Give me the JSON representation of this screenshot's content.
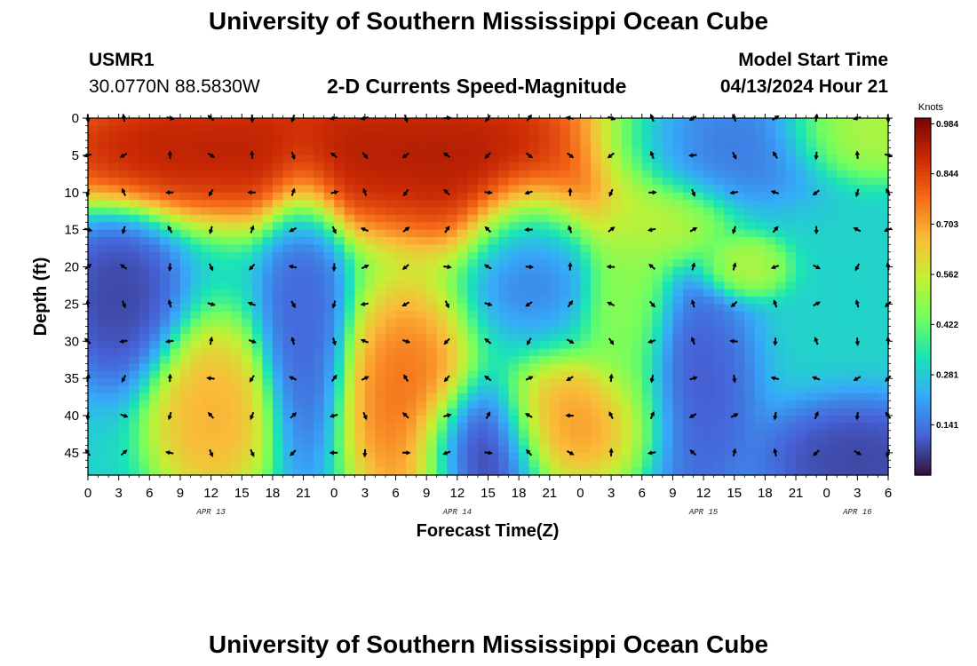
{
  "header": {
    "title_top": "University of Southern Mississippi Ocean Cube",
    "station": "USMR1",
    "coords": "30.0770N  88.5830W",
    "plot_title": "2-D Currents Speed-Magnitude",
    "model_start_label": "Model Start Time",
    "model_start_value": "04/13/2024 Hour 21",
    "title_bottom": "University of Southern Mississippi Ocean Cube"
  },
  "chart_data": {
    "type": "heatmap",
    "title": "2-D Currents Speed-Magnitude",
    "xlabel": "Forecast Time(Z)",
    "ylabel": "Depth (ft)",
    "colorbar_label": "Knots",
    "x_tick_labels": [
      "0",
      "3",
      "6",
      "9",
      "12",
      "15",
      "18",
      "21",
      "0",
      "3",
      "6",
      "9",
      "12",
      "15",
      "18",
      "21",
      "0",
      "3",
      "6",
      "9",
      "12",
      "15",
      "18",
      "21",
      "0",
      "3",
      "6"
    ],
    "x_range_hours": [
      0,
      78
    ],
    "date_labels": [
      {
        "text": "APR 13",
        "hour": 12
      },
      {
        "text": "APR 14",
        "hour": 36
      },
      {
        "text": "APR 15",
        "hour": 60
      },
      {
        "text": "APR 16",
        "hour": 75
      }
    ],
    "y_ticks": [
      0,
      5,
      10,
      15,
      20,
      25,
      30,
      35,
      40,
      45
    ],
    "y_range": [
      0,
      48
    ],
    "y_inverted": true,
    "colorbar_ticks": [
      0.141,
      0.281,
      0.422,
      0.562,
      0.703,
      0.844,
      0.984
    ],
    "colorbar_range": [
      0,
      1.0
    ],
    "colors": {
      "scale": [
        "#30123b",
        "#4662d7",
        "#36aaf9",
        "#1ae4b6",
        "#72fe5e",
        "#c7ef34",
        "#fabb39",
        "#f66b19",
        "#cb2a04",
        "#7a0403"
      ]
    },
    "speed_blobs": [
      {
        "hour": 6,
        "depth": 4,
        "speed": 0.95,
        "sx": 6,
        "sy": 4
      },
      {
        "hour": 22,
        "depth": 4,
        "speed": 0.98,
        "sx": 10,
        "sy": 5
      },
      {
        "hour": 40,
        "depth": 6,
        "speed": 0.98,
        "sx": 8,
        "sy": 6
      },
      {
        "hour": 76,
        "depth": 2,
        "speed": 0.55,
        "sx": 4,
        "sy": 3
      },
      {
        "hour": 12,
        "depth": 40,
        "speed": 0.72,
        "sx": 3,
        "sy": 6
      },
      {
        "hour": 31,
        "depth": 38,
        "speed": 0.82,
        "sx": 3,
        "sy": 8
      },
      {
        "hour": 48,
        "depth": 41,
        "speed": 0.75,
        "sx": 4,
        "sy": 4
      },
      {
        "hour": 53,
        "depth": 26,
        "speed": 0.5,
        "sx": 2,
        "sy": 10
      },
      {
        "hour": 56,
        "depth": 14,
        "speed": 0.55,
        "sx": 3,
        "sy": 3
      },
      {
        "hour": 64,
        "depth": 20,
        "speed": 0.55,
        "sx": 2,
        "sy": 2
      },
      {
        "hour": 3,
        "depth": 24,
        "speed": 0.05,
        "sx": 3,
        "sy": 6
      },
      {
        "hour": 21,
        "depth": 27,
        "speed": 0.1,
        "sx": 2,
        "sy": 10
      },
      {
        "hour": 38,
        "depth": 44,
        "speed": 0.02,
        "sx": 3,
        "sy": 4
      },
      {
        "hour": 59,
        "depth": 37,
        "speed": 0.08,
        "sx": 3,
        "sy": 8
      },
      {
        "hour": 75,
        "depth": 46,
        "speed": 0.05,
        "sx": 5,
        "sy": 4
      },
      {
        "hour": 60,
        "depth": 4,
        "speed": 0.12,
        "sx": 6,
        "sy": 4
      },
      {
        "hour": 43,
        "depth": 17,
        "speed": 0.12,
        "sx": 3,
        "sy": 5
      }
    ],
    "vector_grid": {
      "hours": [
        0,
        3.5,
        8,
        12,
        16,
        20,
        24,
        27,
        31,
        35,
        39,
        43,
        47,
        51,
        55,
        59,
        63,
        67,
        71,
        75,
        78
      ],
      "depths": [
        0,
        5,
        10,
        15,
        20,
        25,
        30,
        35,
        40,
        45
      ]
    }
  }
}
